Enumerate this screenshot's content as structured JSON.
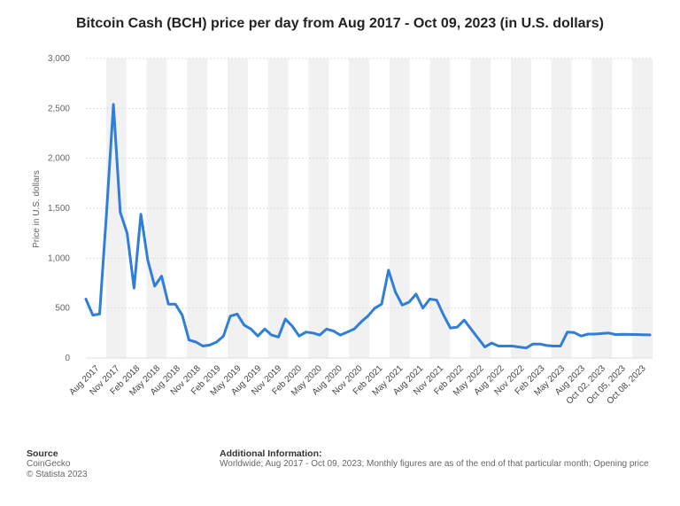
{
  "footer": {
    "source_heading": "Source",
    "source_lines": [
      "CoinGecko",
      "© Statista 2023"
    ],
    "info_heading": "Additional Information:",
    "info_text": "Worldwide; Aug 2017 - Oct 09, 2023; Monthly figures are as of the end of that particular month; Opening price"
  },
  "colors": {
    "line": "#2f7ed8",
    "band": "#f1f1f1",
    "grid": "#dddddd"
  },
  "chart_data": {
    "type": "line",
    "title": "Bitcoin Cash (BCH) price per day from Aug 2017 - Oct 09, 2023 (in U.S. dollars)",
    "xlabel": "",
    "ylabel": "Price in U.S. dollars",
    "ylim": [
      0,
      3000
    ],
    "yticks": [
      0,
      500,
      1000,
      1500,
      2000,
      2500,
      3000
    ],
    "ytick_labels": [
      "0",
      "500",
      "1,000",
      "1,500",
      "2,000",
      "2,500",
      "3,000"
    ],
    "grid": true,
    "legend": "none",
    "xtick_labels": [
      "Aug 2017",
      "Nov 2017",
      "Feb 2018",
      "May 2018",
      "Aug 2018",
      "Nov 2018",
      "Feb 2019",
      "May 2019",
      "Aug 2019",
      "Nov 2019",
      "Feb 2020",
      "May 2020",
      "Aug 2020",
      "Nov 2020",
      "Feb 2021",
      "May 2021",
      "Aug 2021",
      "Nov 2021",
      "Feb 2022",
      "May 2022",
      "Aug 2022",
      "Nov 2022",
      "Feb 2023",
      "May 2023",
      "Aug 2023",
      "Oct 02, 2023",
      "Oct 05, 2023",
      "Oct 08, 2023"
    ],
    "series": [
      {
        "values": [
          590,
          430,
          440,
          1450,
          2540,
          1460,
          1250,
          700,
          1440,
          980,
          720,
          820,
          540,
          540,
          430,
          180,
          160,
          120,
          130,
          160,
          220,
          420,
          440,
          330,
          290,
          220,
          290,
          230,
          210,
          390,
          320,
          220,
          260,
          250,
          230,
          290,
          270,
          230,
          260,
          290,
          360,
          420,
          500,
          540,
          880,
          660,
          530,
          560,
          640,
          500,
          590,
          580,
          430,
          300,
          310,
          380,
          290,
          200,
          110,
          150,
          120,
          120,
          120,
          110,
          100,
          140,
          140,
          125,
          120,
          120,
          260,
          255,
          220,
          240,
          240,
          245,
          250,
          235,
          238,
          236,
          235,
          233,
          232
        ]
      }
    ]
  }
}
